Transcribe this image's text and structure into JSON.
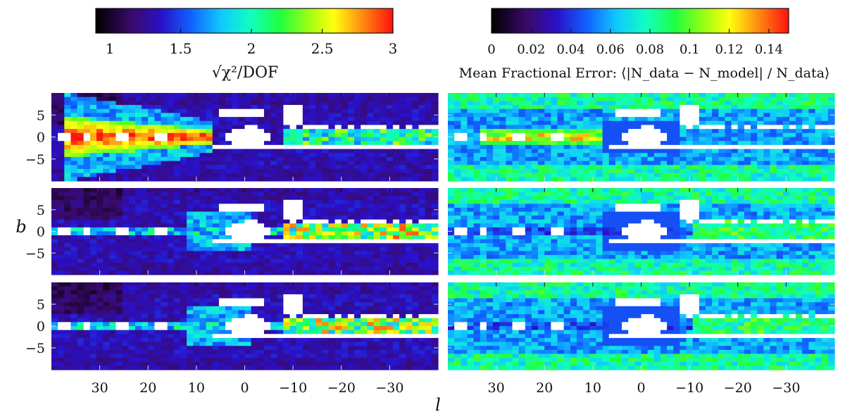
{
  "colorbars": [
    {
      "id": "chi",
      "title": "√χ²/DOF",
      "min": 0.9,
      "max": 3.0,
      "ticks": [
        {
          "value": 1,
          "label": "1"
        },
        {
          "value": 1.5,
          "label": "1.5"
        },
        {
          "value": 2,
          "label": "2"
        },
        {
          "value": 2.5,
          "label": "2.5"
        },
        {
          "value": 3,
          "label": "3"
        }
      ]
    },
    {
      "id": "frac",
      "title": "Mean Fractional Error: ⟨|N_data − N_model| / N_data⟩",
      "min": 0.0,
      "max": 0.15,
      "ticks": [
        {
          "value": 0,
          "label": "0"
        },
        {
          "value": 0.02,
          "label": "0.02"
        },
        {
          "value": 0.04,
          "label": "0.04"
        },
        {
          "value": 0.06,
          "label": "0.06"
        },
        {
          "value": 0.08,
          "label": "0.08"
        },
        {
          "value": 0.1,
          "label": "0.1"
        },
        {
          "value": 0.12,
          "label": "0.12"
        },
        {
          "value": 0.14,
          "label": "0.14"
        }
      ]
    }
  ],
  "axes": {
    "xlabel": "l",
    "ylabel": "b",
    "xlim": [
      40,
      -40
    ],
    "ylim": [
      -10,
      10
    ],
    "xticks": [
      {
        "value": 30,
        "label": "30"
      },
      {
        "value": 20,
        "label": "20"
      },
      {
        "value": 10,
        "label": "10"
      },
      {
        "value": 0,
        "label": "0"
      },
      {
        "value": -10,
        "label": "−10"
      },
      {
        "value": -20,
        "label": "−20"
      },
      {
        "value": -30,
        "label": "−30"
      }
    ],
    "yticks": [
      {
        "value": 5,
        "label": "5"
      },
      {
        "value": 0,
        "label": "0"
      },
      {
        "value": -5,
        "label": "−5"
      }
    ]
  },
  "chart_data": [
    {
      "type": "heatmap",
      "panel": "left-row-1",
      "quantity": "√χ²/DOF",
      "colormap": "rainbow",
      "xlim": [
        40,
        -40
      ],
      "ylim": [
        -10,
        10
      ],
      "peak_value": 3.0,
      "peak_region": "b≈0, l 8–30",
      "masked_region": "white near l≈0 and l≈−10"
    },
    {
      "type": "heatmap",
      "panel": "left-row-2",
      "quantity": "√χ²/DOF",
      "colormap": "rainbow",
      "xlim": [
        40,
        -40
      ],
      "ylim": [
        -10,
        10
      ],
      "peak_value": 3.0,
      "peak_region": "b≈0, l −10 to −35"
    },
    {
      "type": "heatmap",
      "panel": "left-row-3",
      "quantity": "√χ²/DOF",
      "colormap": "rainbow",
      "xlim": [
        40,
        -40
      ],
      "ylim": [
        -10,
        10
      ],
      "peak_value": 2.7,
      "peak_region": "b≈0, l −10 to −35"
    },
    {
      "type": "heatmap",
      "panel": "right-row-1",
      "quantity": "Mean Fractional Error",
      "colormap": "rainbow",
      "xlim": [
        40,
        -40
      ],
      "ylim": [
        -10,
        10
      ],
      "peak_value": 0.15,
      "peak_region": "b≈0, l 8–30"
    },
    {
      "type": "heatmap",
      "panel": "right-row-2",
      "quantity": "Mean Fractional Error",
      "colormap": "rainbow",
      "xlim": [
        40,
        -40
      ],
      "ylim": [
        -10,
        10
      ],
      "peak_value": 0.09,
      "peak_region": "b≈0, l −10 to −35"
    },
    {
      "type": "heatmap",
      "panel": "right-row-3",
      "quantity": "Mean Fractional Error",
      "colormap": "rainbow",
      "xlim": [
        40,
        -40
      ],
      "ylim": [
        -10,
        10
      ],
      "peak_value": 0.1,
      "peak_region": "high |b|"
    }
  ]
}
